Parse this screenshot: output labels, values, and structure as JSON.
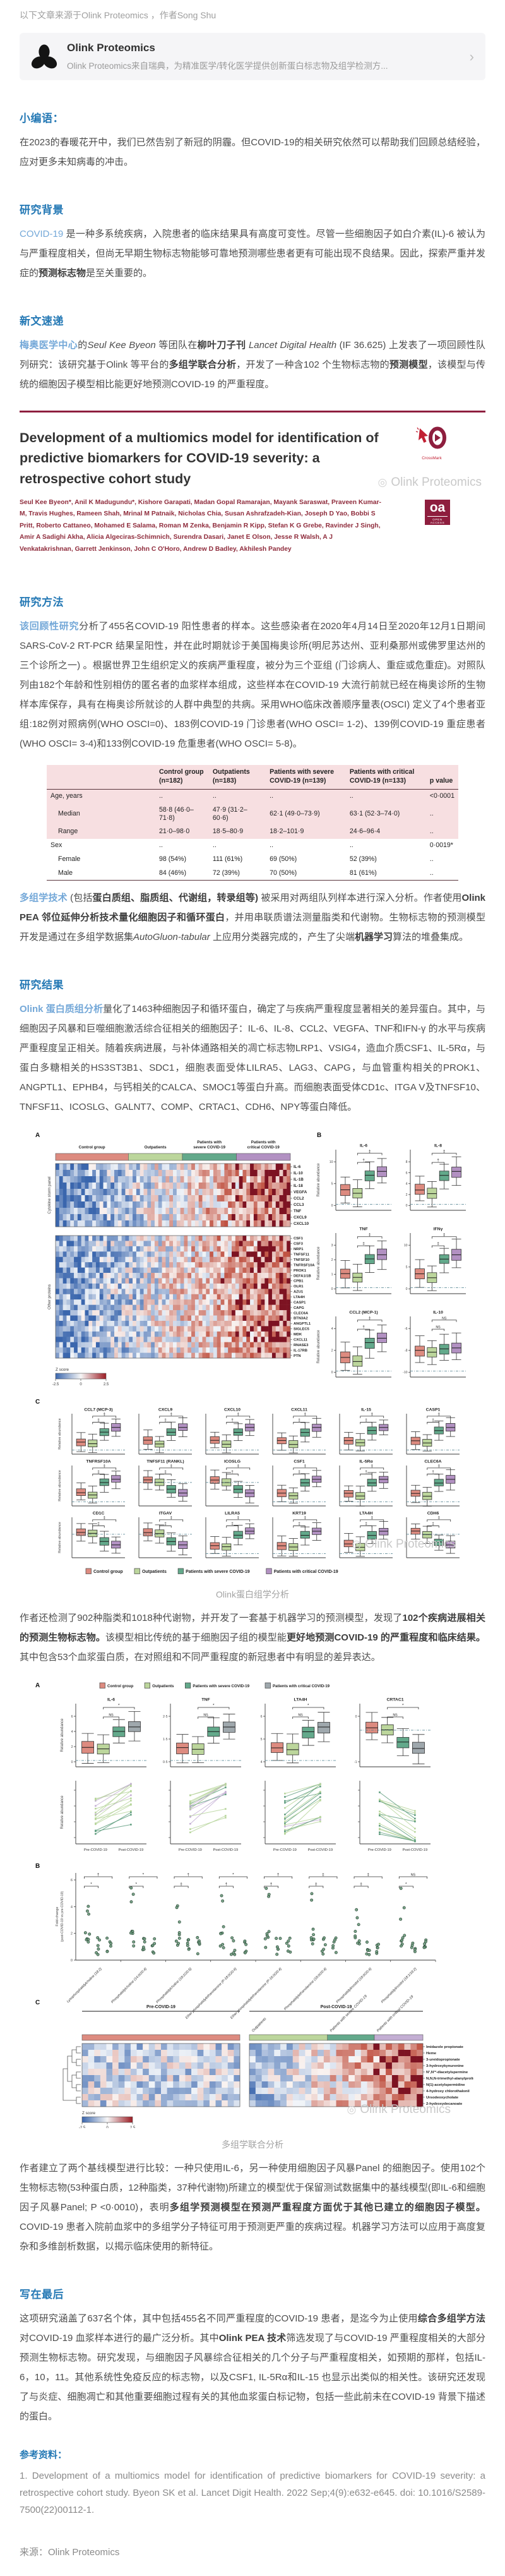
{
  "header": {
    "source_line": "以下文章来源于Olink Proteomics ，作者Song Shu"
  },
  "account_card": {
    "name": "Olink Proteomics",
    "desc": "Olink Proteomics来自瑞典，为精准医学/转化医学提供创新蛋白标志物及组学检测方...",
    "chevron": "›"
  },
  "sections": {
    "editor_note_heading": "小编语：",
    "background_heading": "研究背景",
    "news_heading": "新文速递",
    "methods_heading": "研究方法",
    "results_heading": "研究结果",
    "conclusion_heading": "写在最后",
    "references_heading": "参考资料："
  },
  "paragraphs": {
    "editor_note": [
      {
        "t": "在2023的春暖花开中，我们已然告别了新冠的阴霾。但COVID-19的相关研究依然可以帮助我们回顾总结经验，应对更多未知病毒的冲击。",
        "s": "n"
      }
    ],
    "background": [
      {
        "t": "COVID-19 ",
        "s": "bl"
      },
      {
        "t": "是一种多系统疾病，入院患者的临床结果具有高度可变性。尽管一些细胞因子如白介素(IL)-6 被认为与严重程度相关，但尚无早期生物标志物能够可靠地预测哪些患者更有可能出现不良结果。因此，探索严重并发症的",
        "s": "n"
      },
      {
        "t": "预测标志物",
        "s": "b"
      },
      {
        "t": "是至关重要的。",
        "s": "n"
      }
    ],
    "news": [
      {
        "t": "梅奥医学中心",
        "s": "blb"
      },
      {
        "t": "的",
        "s": "n"
      },
      {
        "t": "Seul Kee Byeon ",
        "s": "i"
      },
      {
        "t": "等团队在",
        "s": "n"
      },
      {
        "t": "柳叶刀子刊 ",
        "s": "b"
      },
      {
        "t": "Lancet Digital Health ",
        "s": "i"
      },
      {
        "t": "(IF 36.625) 上发表了一项回顾性队列研究：该研究基于Olink 等平台的",
        "s": "n"
      },
      {
        "t": "多组学联合分析",
        "s": "b"
      },
      {
        "t": "，开发了一种含102 个生物标志物的",
        "s": "n"
      },
      {
        "t": "预测模型",
        "s": "b"
      },
      {
        "t": "，该模型与传统的细胞因子模型相比能更好地预测COVID-19 的严重程度。",
        "s": "n"
      }
    ],
    "methods": [
      {
        "t": "该回顾性研究",
        "s": "blb"
      },
      {
        "t": "分析了455名COVID-19 阳性患者的样本。这些感染者在2020年4月14日至2020年12月1日期间SARS-CoV-2 RT-PCR 结果呈阳性，并在此时期就诊于美国梅奥诊所(明尼苏达州、亚利桑那州或佛罗里达州的三个诊所之一) 。根据世界卫生组织定义的疾病严重程度，被分为三个亚组 (门诊病人、重症或危重症)。对照队列由182个年龄和性别相仿的匿名者的血浆样本组成，这些样本在COVID-19 大流行前就已经在梅奥诊所的生物样本库保存，具有在梅奥诊所就诊的人群中典型的共病。采用WHO临床改善顺序量表(OSCI) 定义了4个患者亚组:182例对照病例(WHO OSCI=0)、183例COVID-19 门诊患者(WHO OSCI= 1-2)、139例COVID-19 重症患者(WHO OSCI= 3-4)和133例COVID-19 危重患者(WHO OSCI= 5-8)。",
        "s": "n"
      }
    ],
    "multiomics": [
      {
        "t": "多组学技术 ",
        "s": "blb"
      },
      {
        "t": "(包括",
        "s": "n"
      },
      {
        "t": "蛋白质组、脂质组、代谢组，转录组等)",
        "s": "b"
      },
      {
        "t": " 被采用对两组队列样本进行深入分析。作者使用",
        "s": "n"
      },
      {
        "t": "Olink PEA 邻位延伸分析技术量化细胞因子和循环蛋白",
        "s": "b"
      },
      {
        "t": "，并用串联质谱法测量脂类和代谢物。生物标志物的预测模型开发是通过在多组学数据集",
        "s": "n"
      },
      {
        "t": "AutoGluon-tabular ",
        "s": "i"
      },
      {
        "t": "上应用分类器完成的，产生了尖端",
        "s": "n"
      },
      {
        "t": "机器学习",
        "s": "b"
      },
      {
        "t": "算法的堆叠集成。",
        "s": "n"
      }
    ],
    "results1": [
      {
        "t": "Olink 蛋白质组分析",
        "s": "blb"
      },
      {
        "t": "量化了1463种细胞因子和循环蛋白，确定了与疾病严重程度显著相关的差异蛋白。其中，与细胞因子风暴和巨噬细胞激活综合征相关的细胞因子：IL-6、IL-8、CCL2、VEGFA、TNF和IFN-γ 的水平与疾病严重程度呈正相关。随着疾病进展，与补体通路相关的凋亡标志物LRP1、VSIG4，造血介质CSF1、IL-5Rα，与蛋白多糖相关的HS3ST3B1、SDC1，细胞表面受体LILRA5、LAG3、CAPG，与血管重构相关的PROK1、ANGPTL1、EPHB4，与钙相关的CALCA、SMOC1等蛋白升高。而细胞表面受体CD1c、ITGA V及TNFSF10、TNFSF11、ICOSLG、GALNT7、COMP、CRTAC1、CDH6、NPY等蛋白降低。",
        "s": "n"
      }
    ],
    "results2": [
      {
        "t": "作者还检测了902种脂类和1018种代谢物，并开发了一套基于机器学习的预测模型，发现了",
        "s": "n"
      },
      {
        "t": "102个疾病进展相关的预测生物标志物。",
        "s": "b"
      },
      {
        "t": "该模型相比传统的基于细胞因子组的模型能",
        "s": "n"
      },
      {
        "t": "更好地预测COVID-19 的严重程度和临床结果。",
        "s": "b"
      },
      {
        "t": "其中包含53个血浆蛋白质，在对照组和不同严重程度的新冠患者中有明显的差异表达。",
        "s": "n"
      }
    ],
    "results3": [
      {
        "t": "作者建立了两个基线模型进行比较：一种只使用IL-6，另一种使用细胞因子风暴Panel 的细胞因子。使用102个生物标志物(53种蛋白质，12种脂类，37种代谢物)所建立的模型优于保留测试数据集中的基线模型(即IL-6和细胞因子风暴Panel; P <0·0010)，表明",
        "s": "n"
      },
      {
        "t": "多组学预测模型在预测严重程度方面优于其他已建立的细胞因子模型。",
        "s": "b"
      },
      {
        "t": "COVID-19 患者入院前血浆中的多组学分子特征可用于预测更严重的疾病过程。机器学习方法可以应用于高度复杂和多维剖析数据，以揭示临床使用的新特征。",
        "s": "n"
      }
    ],
    "conclusion": [
      {
        "t": "这项研究涵盖了637名个体，其中包括455名不同严重程度的COVID-19 患者，是迄今为止使用",
        "s": "n"
      },
      {
        "t": "综合多组学方法",
        "s": "b"
      },
      {
        "t": "对COVID-19 血浆样本进行的最广泛分析。其中",
        "s": "n"
      },
      {
        "t": "Olink PEA 技术",
        "s": "b"
      },
      {
        "t": "筛选发现了与COVID-19 严重程度相关的大部分预测生物标志物。研究发现，与细胞因子风暴综合征相关的几个分子与严重程度相关，如预期的那样，包括IL-6，10，11。其他系统性免疫反应的标志物，以及CSF1, IL-5Rα和IL-15 也显示出类似的相关性。该研究还发现了与炎症、细胞凋亡和其他重要细胞过程有关的其他血浆蛋白标记物，包括一些此前未在COVID-19 背景下描述的蛋白。",
        "s": "n"
      }
    ]
  },
  "paper": {
    "title": "Development of a multiomics model for identification of predictive biomarkers for COVID-19 severity: a retrospective cohort study",
    "authors": "Seul Kee Byeon*, Anil K Madugundu*, Kishore Garapati, Madan Gopal Ramarajan, Mayank Saraswat, Praveen Kumar-M, Travis Hughes, Rameen Shah, Mrinal M Patnaik, Nicholas Chia, Susan Ashrafzadeh-Kian, Joseph D Yao, Bobbi S Pritt, Roberto Cattaneo, Mohamed E Salama, Roman M Zenka, Benjamin R Kipp, Stefan K G Grebe, Ravinder J Singh, Amir A Sadighi Akha, Alicia Algeciras-Schimnich, Surendra Dasari, Janet E Olson, Jesse R Walsh, A J Venkatakrishnan, Garrett Jenkinson, John C O'Horo, Andrew D Badley, Akhilesh Pandey",
    "oa": "oa",
    "oa_sub": "OPEN ACCESS",
    "crossmark": "CrossMark"
  },
  "table": {
    "headers": [
      "",
      "Control group (n=182)",
      "Outpatients (n=183)",
      "Patients with severe COVID-19 (n=139)",
      "Patients with critical COVID-19 (n=133)",
      "p value"
    ],
    "rows": [
      {
        "label": "Age, years",
        "indent": false,
        "shaded": true,
        "cells": [
          "..",
          "..",
          "..",
          "..",
          "<0·0001"
        ]
      },
      {
        "label": "Median",
        "indent": true,
        "shaded": true,
        "cells": [
          "58·8 (46·0–71·8)",
          "47·9 (31·2–60·6)",
          "62·1 (49·0–73·9)",
          "63·1 (52·3–74·0)",
          ".."
        ]
      },
      {
        "label": "Range",
        "indent": true,
        "shaded": true,
        "cells": [
          "21·0–98·0",
          "18·5–80·9",
          "18·2–101·9",
          "24·6–96·4",
          ".."
        ]
      },
      {
        "label": "Sex",
        "indent": false,
        "shaded": false,
        "cells": [
          "..",
          "..",
          "..",
          "..",
          "0·0019*"
        ]
      },
      {
        "label": "Female",
        "indent": true,
        "shaded": false,
        "cells": [
          "98 (54%)",
          "111 (61%)",
          "69 (50%)",
          "52 (39%)",
          ".."
        ]
      },
      {
        "label": "Male",
        "indent": true,
        "shaded": false,
        "cells": [
          "84 (46%)",
          "72 (39%)",
          "70 (50%)",
          "81 (61%)",
          ".."
        ]
      }
    ]
  },
  "figures": {
    "watermark": "Olink Proteomics",
    "group_labels": [
      "Control group",
      "Outpatients",
      "Patients with severe COVID-19",
      "Patients with critical COVID-19"
    ],
    "group_colors": [
      "#dd8b80",
      "#bcd69c",
      "#63a98b",
      "#b291c2"
    ],
    "group_colors_alt": [
      "#dd8b80",
      "#bcd69c",
      "#63a98b",
      "#9fa8ad"
    ],
    "zscore": {
      "label": "Z score",
      "ticks": [
        "-2.5",
        "0",
        "2.5"
      ]
    },
    "fig1": {
      "caption": "Olink蛋白组学分析",
      "panelA": {
        "label": "A",
        "ylabel1": "Cytokine storm panel",
        "ylabel2": "Other proteins",
        "rows1": [
          "IL-6",
          "IL-10",
          "IL-1B",
          "IL-18",
          "VEGFA",
          "CCL2",
          "CCL3",
          "TNF",
          "CXCL9",
          "CXCL10"
        ],
        "rows2": [
          "CSF1",
          "CSF3",
          "NRP1",
          "TNFSF11",
          "TNFSF10",
          "TNFRSF10A",
          "PROK1",
          "DEFA1/1B",
          "CPB1",
          "OLR1",
          "AZU1",
          "LTA4H",
          "CASP1",
          "CAPG",
          "CLEC6A",
          "BTN3A2",
          "ANGPTL1",
          "SIGLEC5",
          "MDK",
          "CXCL11",
          "RNASE3",
          "IL-17RB",
          "PTN"
        ]
      },
      "panelB": {
        "label": "B",
        "ylabel": "Relative abundance",
        "plots": [
          {
            "name": "IL-6",
            "trend": "up",
            "sig": [
              "‡",
              "†"
            ],
            "yticks": [
              "0",
              "5",
              "10"
            ]
          },
          {
            "name": "IL-8",
            "trend": "up",
            "sig": [
              "‡",
              "†"
            ],
            "yticks": [
              "0",
              "2",
              "4",
              "6",
              "8"
            ]
          },
          {
            "name": "TNF",
            "trend": "up",
            "sig": [
              "‡",
              "‡"
            ],
            "yticks": [
              "0",
              "1",
              "2",
              "3"
            ]
          },
          {
            "name": "IFNγ",
            "trend": "up",
            "sig": [
              "‡",
              "‡"
            ],
            "yticks": [
              "0",
              "5",
              "10"
            ]
          },
          {
            "name": "CCL2 (MCP-1)",
            "trend": "up",
            "sig": [
              "‡",
              "†"
            ],
            "yticks": [
              "0",
              "2",
              "4"
            ]
          },
          {
            "name": "IL-10",
            "trend": "flat",
            "sig": [
              "NS",
              "NS"
            ],
            "yticks": [
              "-10",
              "-8",
              "-6"
            ]
          }
        ]
      },
      "panelC": {
        "label": "C",
        "ylabel": "Relative abundance",
        "plots": [
          {
            "name": "CCL7 (MCP-3)",
            "trend": "up",
            "sig": [
              "‡",
              "‡"
            ]
          },
          {
            "name": "CXCL9",
            "trend": "up",
            "sig": [
              "‡",
              "‡"
            ]
          },
          {
            "name": "CXCL10",
            "trend": "up",
            "sig": [
              "‡",
              "†"
            ]
          },
          {
            "name": "CXCL11",
            "trend": "up",
            "sig": [
              "‡",
              "‡"
            ]
          },
          {
            "name": "IL-15",
            "trend": "up",
            "sig": [
              "‡",
              "‡"
            ]
          },
          {
            "name": "CASP1",
            "trend": "up",
            "sig": [
              "‡",
              "‡"
            ]
          },
          {
            "name": "TNFRSF10A",
            "trend": "up",
            "sig": [
              "‡",
              "‡"
            ]
          },
          {
            "name": "TNFSF11 (RANKL)",
            "trend": "down",
            "sig": [
              "‡",
              "‡"
            ]
          },
          {
            "name": "ICOSLG",
            "trend": "down",
            "sig": [
              "‡",
              "†"
            ]
          },
          {
            "name": "CSF1",
            "trend": "up",
            "sig": [
              "‡",
              "‡"
            ]
          },
          {
            "name": "IL-5Rα",
            "trend": "up",
            "sig": [
              "‡",
              "†"
            ]
          },
          {
            "name": "CLEC6A",
            "trend": "up",
            "sig": [
              "‡",
              "†"
            ]
          },
          {
            "name": "CD1C",
            "trend": "down",
            "sig": [
              "‡",
              "‡"
            ]
          },
          {
            "name": "ITGAV",
            "trend": "down",
            "sig": [
              "‡",
              "‡"
            ]
          },
          {
            "name": "LILRA5",
            "trend": "up",
            "sig": [
              "‡",
              "‡"
            ]
          },
          {
            "name": "KRT19",
            "trend": "up",
            "sig": [
              "‡",
              "‡"
            ]
          },
          {
            "name": "LTA4H",
            "trend": "up",
            "sig": [
              "‡",
              "‡"
            ]
          },
          {
            "name": "CDH6",
            "trend": "down",
            "sig": [
              "‡",
              "‡"
            ]
          }
        ]
      }
    },
    "fig2": {
      "caption": "多组学联合分析",
      "panelA": {
        "label": "A",
        "ylabel": "Relative abundance",
        "plots": [
          {
            "name": "IL-6",
            "trend": "up",
            "sig": [
              "*",
              "NS"
            ],
            "yticks": [
              "0",
              "2",
              "4",
              "6"
            ]
          },
          {
            "name": "TNF",
            "trend": "up",
            "sig": [
              "*",
              "NS"
            ],
            "yticks": [
              "0·5",
              "1·5",
              "2·5"
            ]
          },
          {
            "name": "LTA4H",
            "trend": "up",
            "sig": [
              "*",
              "NS"
            ],
            "yticks": [
              "4",
              "5",
              "6"
            ]
          },
          {
            "name": "CRTAC1",
            "trend": "down",
            "sig": [
              "*",
              "NS"
            ],
            "yticks": [
              "-1",
              "0"
            ]
          }
        ]
      },
      "slopes": {
        "ylabel": "Relative abundance",
        "xlabels": [
          "Pre-COVID-19",
          "Post-COVID-19"
        ],
        "trends": [
          "up",
          "up",
          "up",
          "down"
        ]
      },
      "panelB": {
        "label": "B",
        "ylabel1": "Fold-change",
        "ylabel2": "(post-COVID-19 vs pre-COVID-19)",
        "yticks": [
          "0",
          "2",
          "4",
          "6"
        ],
        "sig_top": [
          "†",
          "*",
          "†",
          "*",
          "†",
          "‡",
          "‡",
          "NS"
        ],
        "sig_inner": [
          "*",
          "*",
          "‡",
          "†",
          "†",
          "‡",
          "‡",
          "*"
        ],
        "xlabels": [
          "Lysophosphatidylcholine (18:2)",
          "Phosphatidylcholine (14:0/20:4)",
          "Phosphatidylcholine (18:2/20:5)",
          "Ether phosphatidylethanolamine (P-18:0/20:4)",
          "Ether phosphatidylethanolamine (P-16:0/20:4)",
          "Phosphatidylethanolamine (18:0/20:4)",
          "Phosphatidylinositol (18:0/20:4)",
          "Phosphatidylinositol (18:1/18:2)"
        ]
      },
      "panelC": {
        "label": "C",
        "headers": [
          "Pre-COVID-19",
          "Post-COVID-19"
        ],
        "col_groups": [
          "Outpatients",
          "Patients with severe COVID-19",
          "Patients with critical COVID-19"
        ],
        "rows": [
          "Imidazole propionate",
          "Heme",
          "3-ureidopropionate",
          "3-hydroxykynurenine",
          "N¹,N¹²-diacetylspermine",
          "N,N,N-trimethyl-alanylproline betaine (TMAP)",
          "N(1)-acetylspermidine",
          "4-hydroxy chlorothalonil",
          "Ursodeoxycholate",
          "2-hydroxydecanoate"
        ]
      }
    }
  },
  "references": {
    "items": [
      "1. Development of a multiomics model for identification of predictive biomarkers for COVID-19 severity: a retrospective cohort study. Byeon SK et al. Lancet Digit Health. 2022 Sep;4(9):e632-e645.  doi: 10.1016/S2589-7500(22)00112-1."
    ]
  },
  "footer": {
    "source_label": "来源：Olink Proteomics"
  }
}
